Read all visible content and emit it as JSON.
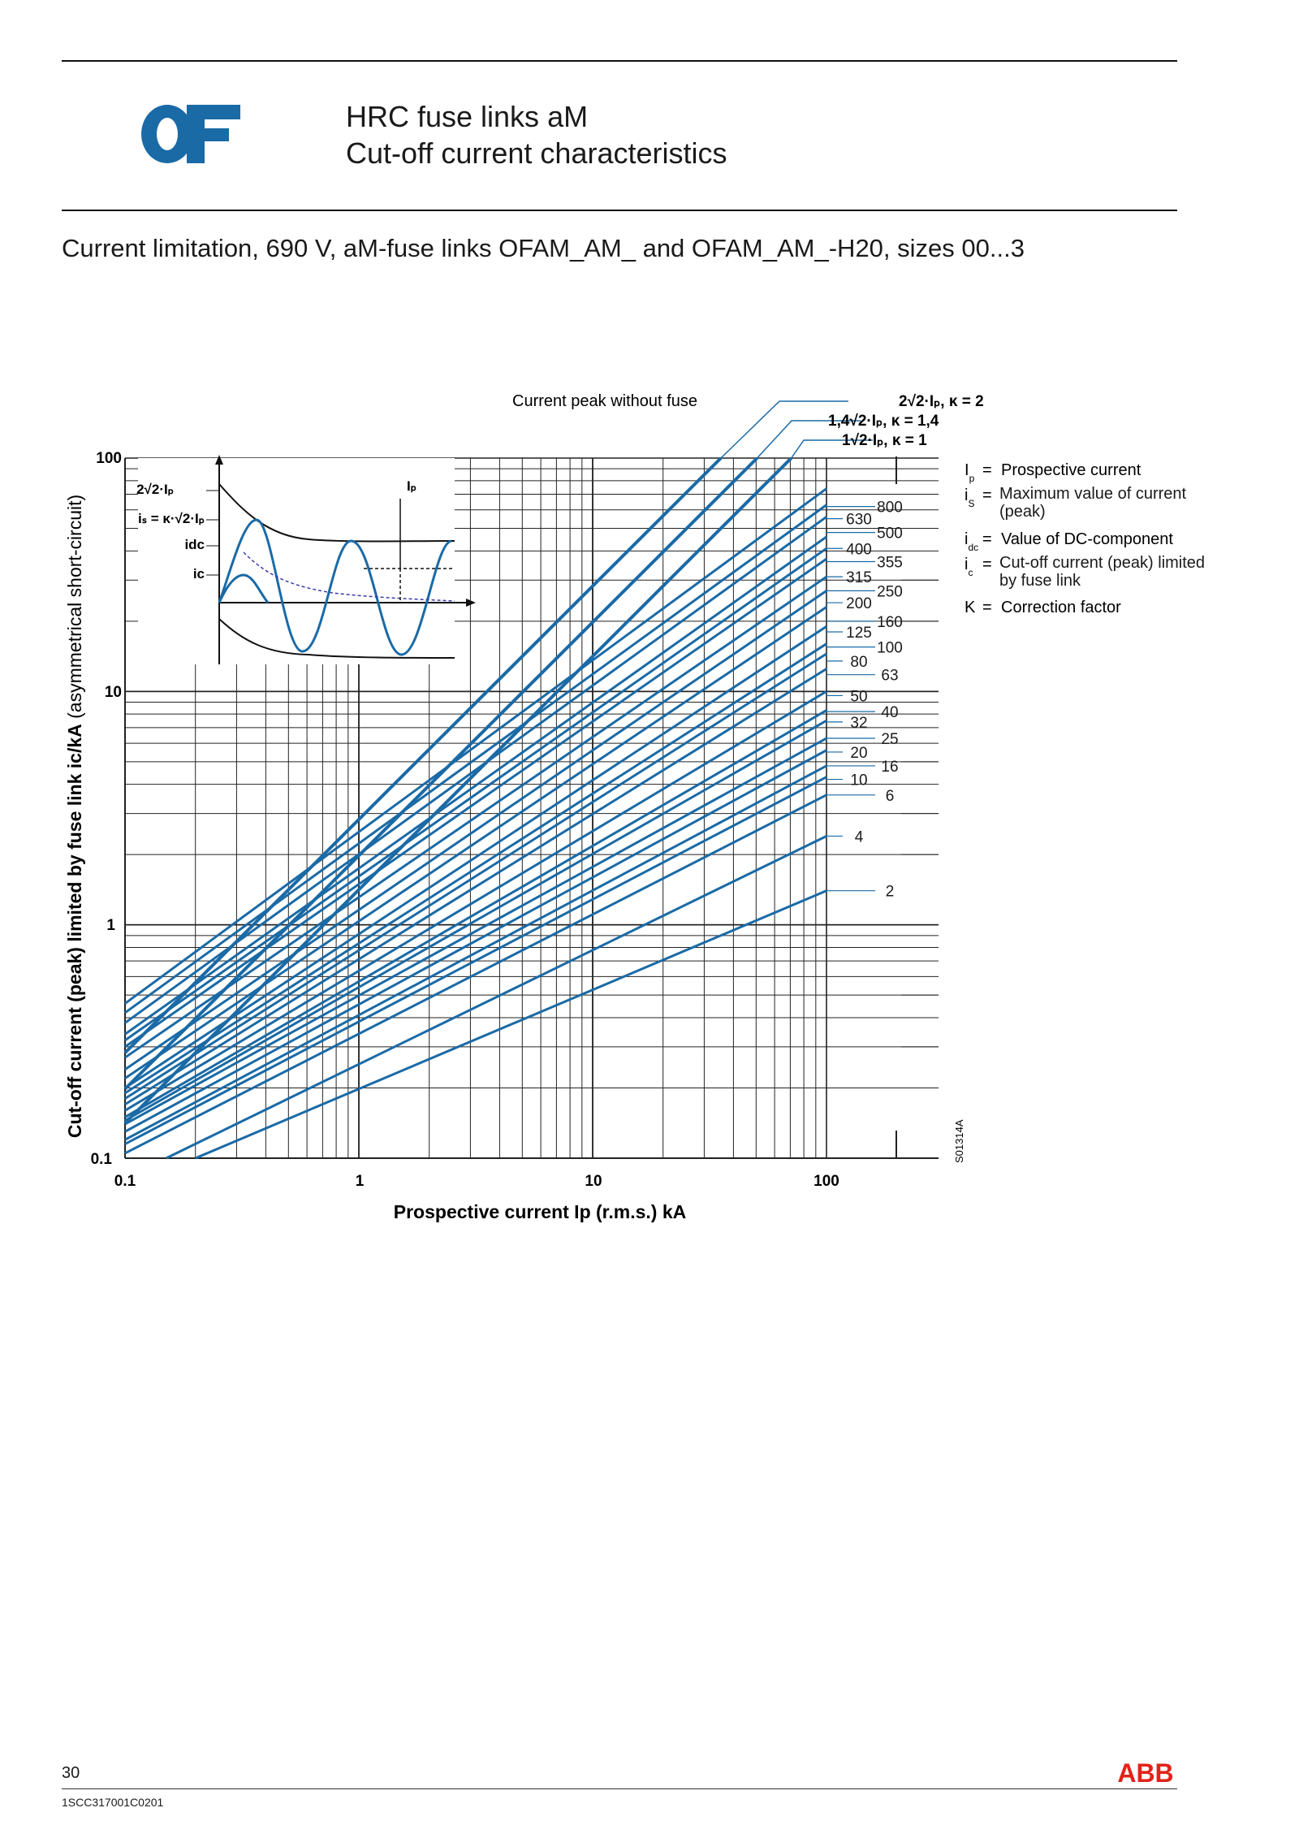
{
  "header": {
    "logo_text": "OF",
    "title_line1": "HRC fuse links aM",
    "title_line2": "Cut-off current characteristics"
  },
  "subtitle": "Current limitation, 690 V, aM-fuse links OFAM_AM_ and OFAM_AM_-H20, sizes 00...3",
  "colors": {
    "curve": "#1a6aa6",
    "grid": "#222222",
    "text": "#1a1a1a",
    "abb_red": "#e2231a"
  },
  "chart_data": {
    "type": "line",
    "x_scale": "log",
    "y_scale": "log",
    "xlim": [
      0.1,
      100
    ],
    "ylim": [
      0.1,
      100
    ],
    "x_ticks": [
      "0.1",
      "1",
      "10",
      "100"
    ],
    "y_ticks": [
      "0.1",
      "1",
      "10",
      "100"
    ],
    "xlabel": "Prospective current Ip (r.m.s.) kA",
    "ylabel_bold": "Cut-off current (peak) limited by fuse link ic/kA",
    "ylabel_normal": "(asymmetrical short-circuit)",
    "annotation_top": "Current peak without fuse",
    "drawing_id": "S01314A",
    "peak_lines": [
      {
        "label": "2√2·Iₚ, κ = 2",
        "k": 2.0
      },
      {
        "label": "1,4√2·Iₚ, κ = 1,4",
        "k": 1.4
      },
      {
        "label": "1√2·Iₚ, κ = 1",
        "k": 1.0
      }
    ],
    "series": [
      {
        "name": "800",
        "x": [
          0.1,
          100
        ],
        "y": [
          0.46,
          74
        ]
      },
      {
        "name": "630",
        "x": [
          0.1,
          100
        ],
        "y": [
          0.42,
          63
        ]
      },
      {
        "name": "500",
        "x": [
          0.1,
          100
        ],
        "y": [
          0.38,
          56
        ]
      },
      {
        "name": "400",
        "x": [
          0.1,
          100
        ],
        "y": [
          0.34,
          46
        ]
      },
      {
        "name": "355",
        "x": [
          0.1,
          100
        ],
        "y": [
          0.32,
          41
        ]
      },
      {
        "name": "315",
        "x": [
          0.1,
          100
        ],
        "y": [
          0.3,
          37
        ]
      },
      {
        "name": "250",
        "x": [
          0.1,
          100
        ],
        "y": [
          0.27,
          31
        ]
      },
      {
        "name": "200",
        "x": [
          0.1,
          100
        ],
        "y": [
          0.24,
          27
        ]
      },
      {
        "name": "160",
        "x": [
          0.1,
          100
        ],
        "y": [
          0.22,
          23
        ]
      },
      {
        "name": "125",
        "x": [
          0.1,
          100
        ],
        "y": [
          0.2,
          19
        ]
      },
      {
        "name": "100",
        "x": [
          0.1,
          100
        ],
        "y": [
          0.19,
          16
        ]
      },
      {
        "name": "80",
        "x": [
          0.1,
          100
        ],
        "y": [
          0.18,
          14.5
        ]
      },
      {
        "name": "63",
        "x": [
          0.1,
          100
        ],
        "y": [
          0.17,
          12.5
        ]
      },
      {
        "name": "50",
        "x": [
          0.1,
          100
        ],
        "y": [
          0.16,
          10
        ]
      },
      {
        "name": "40",
        "x": [
          0.1,
          100
        ],
        "y": [
          0.15,
          8.3
        ]
      },
      {
        "name": "32",
        "x": [
          0.1,
          100
        ],
        "y": [
          0.145,
          7.5
        ]
      },
      {
        "name": "25",
        "x": [
          0.1,
          100
        ],
        "y": [
          0.14,
          6.3
        ]
      },
      {
        "name": "20",
        "x": [
          0.1,
          100
        ],
        "y": [
          0.13,
          5.6
        ]
      },
      {
        "name": "16",
        "x": [
          0.1,
          100
        ],
        "y": [
          0.12,
          4.8
        ]
      },
      {
        "name": "10",
        "x": [
          0.1,
          100
        ],
        "y": [
          0.115,
          4.3
        ]
      },
      {
        "name": "6",
        "x": [
          0.1,
          100
        ],
        "y": [
          0.105,
          3.6
        ]
      },
      {
        "name": "4",
        "x": [
          0.15,
          100
        ],
        "y": [
          0.1,
          2.4
        ]
      },
      {
        "name": "2",
        "x": [
          0.2,
          100
        ],
        "y": [
          0.1,
          1.4
        ]
      }
    ],
    "series_labels": [
      {
        "text": "800",
        "column": "right",
        "y": 62
      },
      {
        "text": "630",
        "column": "left",
        "y": 55
      },
      {
        "text": "500",
        "column": "right",
        "y": 48
      },
      {
        "text": "400",
        "column": "left",
        "y": 41
      },
      {
        "text": "355",
        "column": "right",
        "y": 36
      },
      {
        "text": "315",
        "column": "left",
        "y": 31
      },
      {
        "text": "250",
        "column": "right",
        "y": 27
      },
      {
        "text": "200",
        "column": "left",
        "y": 24
      },
      {
        "text": "160",
        "column": "right",
        "y": 20
      },
      {
        "text": "125",
        "column": "left",
        "y": 18
      },
      {
        "text": "100",
        "column": "right",
        "y": 15.5
      },
      {
        "text": "80",
        "column": "left",
        "y": 13.5
      },
      {
        "text": "63",
        "column": "right",
        "y": 11.8
      },
      {
        "text": "50",
        "column": "left",
        "y": 9.6
      },
      {
        "text": "40",
        "column": "right",
        "y": 8.2
      },
      {
        "text": "32",
        "column": "left",
        "y": 7.4
      },
      {
        "text": "25",
        "column": "right",
        "y": 6.3
      },
      {
        "text": "20",
        "column": "left",
        "y": 5.5
      },
      {
        "text": "16",
        "column": "right",
        "y": 4.8
      },
      {
        "text": "10",
        "column": "left",
        "y": 4.2
      },
      {
        "text": "6",
        "column": "right",
        "y": 3.6
      },
      {
        "text": "4",
        "column": "left",
        "y": 2.4
      },
      {
        "text": "2",
        "column": "right",
        "y": 1.4
      }
    ],
    "inset": {
      "labels": [
        "2√2·Iₚ",
        "iₛ = κ·√2·Iₚ",
        "idc",
        "ic",
        "Iₚ"
      ]
    },
    "legend": [
      {
        "symbol": "I",
        "sub": "p",
        "text": "Prospective current"
      },
      {
        "symbol": "i",
        "sub": "S",
        "text": "Maximum value of current (peak)"
      },
      {
        "symbol": "i",
        "sub": "dc",
        "text": "Value of DC-component"
      },
      {
        "symbol": "i",
        "sub": "c",
        "text": "Cut-off current (peak) limited by fuse link"
      },
      {
        "symbol": "K",
        "sub": "",
        "text": "Correction factor"
      }
    ],
    "legend_placement": "right",
    "grid": true
  },
  "footer": {
    "page_number": "30",
    "doc_id": "1SCC317001C0201",
    "brand": "ABB"
  }
}
